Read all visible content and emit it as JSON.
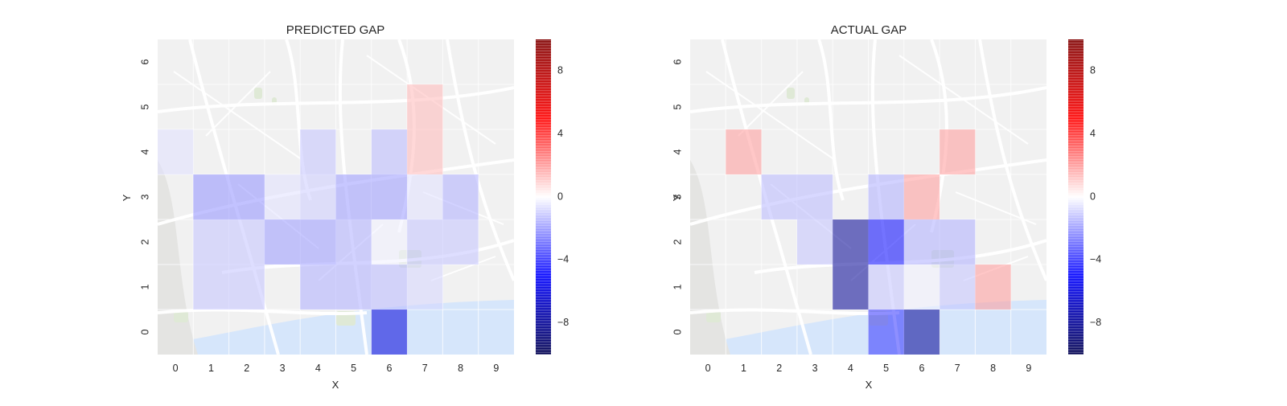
{
  "chart_data": [
    {
      "type": "heatmap",
      "title": "PREDICTED GAP",
      "xlabel": "X",
      "ylabel": "Y",
      "x_ticks": [
        "0",
        "1",
        "2",
        "3",
        "4",
        "5",
        "6",
        "7",
        "8",
        "9"
      ],
      "y_ticks": [
        "0",
        "1",
        "2",
        "3",
        "4",
        "5",
        "6"
      ],
      "xlim": [
        -0.5,
        9.5
      ],
      "ylim": [
        -0.5,
        6.5
      ],
      "grid": "on",
      "background": "street map",
      "colormap": "seismic",
      "cells": [
        {
          "x": 6,
          "y": 0,
          "value": -6
        },
        {
          "x": 1,
          "y": 1,
          "value": -1.2
        },
        {
          "x": 2,
          "y": 1,
          "value": -1.2
        },
        {
          "x": 4,
          "y": 1,
          "value": -1.6
        },
        {
          "x": 5,
          "y": 1,
          "value": -1.6
        },
        {
          "x": 6,
          "y": 1,
          "value": -1.4
        },
        {
          "x": 7,
          "y": 1,
          "value": -0.8
        },
        {
          "x": 1,
          "y": 2,
          "value": -1.2
        },
        {
          "x": 2,
          "y": 2,
          "value": -1.2
        },
        {
          "x": 3,
          "y": 2,
          "value": -2.0
        },
        {
          "x": 4,
          "y": 2,
          "value": -2.0
        },
        {
          "x": 5,
          "y": 2,
          "value": -1.6
        },
        {
          "x": 6,
          "y": 2,
          "value": -0.3
        },
        {
          "x": 7,
          "y": 2,
          "value": -1.2
        },
        {
          "x": 8,
          "y": 2,
          "value": -1.2
        },
        {
          "x": 1,
          "y": 3,
          "value": -2.2
        },
        {
          "x": 2,
          "y": 3,
          "value": -2.2
        },
        {
          "x": 3,
          "y": 3,
          "value": -0.6
        },
        {
          "x": 4,
          "y": 3,
          "value": -1.0
        },
        {
          "x": 5,
          "y": 3,
          "value": -2.0
        },
        {
          "x": 6,
          "y": 3,
          "value": -2.0
        },
        {
          "x": 7,
          "y": 3,
          "value": -0.6
        },
        {
          "x": 8,
          "y": 3,
          "value": -1.6
        },
        {
          "x": 0,
          "y": 4,
          "value": -0.6
        },
        {
          "x": 4,
          "y": 4,
          "value": -1.2
        },
        {
          "x": 6,
          "y": 4,
          "value": -1.4
        },
        {
          "x": 7,
          "y": 4,
          "value": 1.4
        },
        {
          "x": 7,
          "y": 5,
          "value": 1.4
        }
      ]
    },
    {
      "type": "heatmap",
      "title": "ACTUAL GAP",
      "xlabel": "X",
      "ylabel": "Y",
      "x_ticks": [
        "0",
        "1",
        "2",
        "3",
        "4",
        "5",
        "6",
        "7",
        "8",
        "9"
      ],
      "y_ticks": [
        "0",
        "1",
        "2",
        "3",
        "4",
        "5",
        "6"
      ],
      "xlim": [
        -0.5,
        9.5
      ],
      "ylim": [
        -0.5,
        6.5
      ],
      "grid": "on",
      "background": "street map",
      "colormap": "seismic",
      "cells": [
        {
          "x": 5,
          "y": 0,
          "value": -4
        },
        {
          "x": 6,
          "y": 0,
          "value": -8
        },
        {
          "x": 4,
          "y": 1,
          "value": -8
        },
        {
          "x": 5,
          "y": 1,
          "value": -1.2
        },
        {
          "x": 6,
          "y": 1,
          "value": -0.3
        },
        {
          "x": 7,
          "y": 1,
          "value": -1.2
        },
        {
          "x": 8,
          "y": 1,
          "value": 2.0
        },
        {
          "x": 3,
          "y": 2,
          "value": -1.2
        },
        {
          "x": 4,
          "y": 2,
          "value": -8
        },
        {
          "x": 5,
          "y": 2,
          "value": -5
        },
        {
          "x": 6,
          "y": 2,
          "value": -1.6
        },
        {
          "x": 7,
          "y": 2,
          "value": -1.6
        },
        {
          "x": 2,
          "y": 3,
          "value": -1.4
        },
        {
          "x": 3,
          "y": 3,
          "value": -1.4
        },
        {
          "x": 5,
          "y": 3,
          "value": -1.6
        },
        {
          "x": 6,
          "y": 3,
          "value": 2.0
        },
        {
          "x": 1,
          "y": 4,
          "value": 2.0
        },
        {
          "x": 7,
          "y": 4,
          "value": 2.0
        }
      ]
    }
  ],
  "colorbar": {
    "vmin": -10,
    "vmax": 10,
    "ticks": [
      "8",
      "4",
      "0",
      "−4",
      "−8"
    ],
    "tick_values": [
      8,
      4,
      0,
      -4,
      -8
    ]
  }
}
